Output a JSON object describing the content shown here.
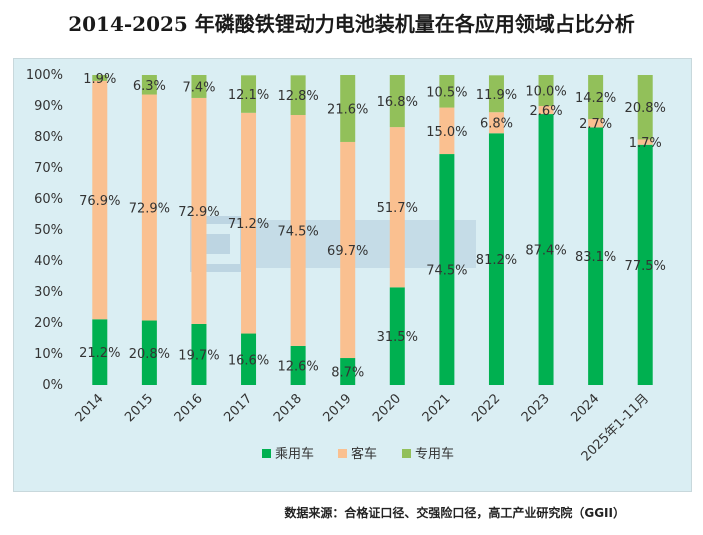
{
  "title": "2014-2025 年磷酸铁锂动力电池装机量在各应用领域占比分析",
  "source": "数据来源：合格证口径、交强险口径，高工产业研究院（GGII）",
  "colors": {
    "passenger": "#00b050",
    "bus": "#fac090",
    "special": "#92c05a"
  },
  "chart_data": {
    "type": "bar",
    "stacked": true,
    "categories": [
      "2014",
      "2015",
      "2016",
      "2017",
      "2018",
      "2019",
      "2020",
      "2021",
      "2022",
      "2023",
      "2024",
      "2025年1-11月"
    ],
    "series": [
      {
        "name": "乘用车",
        "values": [
          21.2,
          20.8,
          19.7,
          16.6,
          12.6,
          8.7,
          31.5,
          74.5,
          81.2,
          87.4,
          83.1,
          77.5
        ],
        "labels": [
          "21.2%",
          "20.8%",
          "19.7%",
          "16.6%",
          "12.6%",
          "8.7%",
          "31.5%",
          "74.5%",
          "81.2%",
          "87.4%",
          "83.1%",
          "77.5%"
        ]
      },
      {
        "name": "客车",
        "values": [
          76.9,
          72.9,
          72.9,
          71.2,
          74.5,
          69.7,
          51.7,
          15.0,
          6.8,
          2.6,
          2.7,
          1.7
        ],
        "labels": [
          "76.9%",
          "72.9%",
          "72.9%",
          "71.2%",
          "74.5%",
          "69.7%",
          "51.7%",
          "15.0%",
          "6.8%",
          "2.6%",
          "2.7%",
          "1.7%"
        ]
      },
      {
        "name": "专用车",
        "values": [
          1.9,
          6.3,
          7.4,
          12.1,
          12.8,
          21.6,
          16.8,
          10.5,
          11.9,
          10.0,
          14.2,
          20.8
        ],
        "labels": [
          "1.9%",
          "6.3%",
          "7.4%",
          "12.1%",
          "12.8%",
          "21.6%",
          "16.8%",
          "10.5%",
          "11.9%",
          "10.0%",
          "14.2%",
          "20.8%"
        ]
      }
    ],
    "yticks": [
      "0%",
      "10%",
      "20%",
      "30%",
      "40%",
      "50%",
      "60%",
      "70%",
      "80%",
      "90%",
      "100%"
    ],
    "ylim": [
      0,
      100
    ],
    "legend_position": "bottom",
    "grid": false
  }
}
